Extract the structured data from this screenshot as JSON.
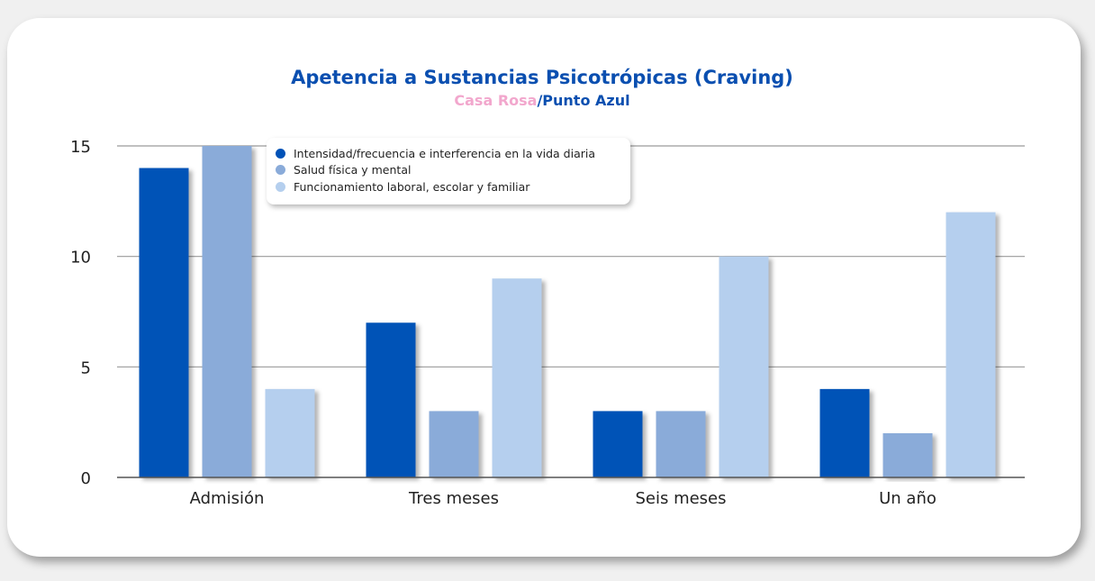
{
  "chart_data": {
    "type": "bar",
    "title": "Apetencia a Sustancias Psicotrópicas (Craving)",
    "subtitle_part1": "Casa Rosa",
    "subtitle_sep": "/",
    "subtitle_part2": "Punto Azul",
    "categories": [
      "Admisión",
      "Tres meses",
      "Seis meses",
      "Un año"
    ],
    "series": [
      {
        "name": "Intensidad/frecuencia e interferencia en la vida diaria",
        "color": "#0052b7",
        "values": [
          14,
          7,
          3,
          4
        ]
      },
      {
        "name": "Salud física y mental",
        "color": "#8aabd9",
        "values": [
          15,
          3,
          3,
          2
        ]
      },
      {
        "name": "Funcionamiento laboral, escolar y familiar",
        "color": "#b5cfee",
        "values": [
          4,
          9,
          10,
          12
        ]
      }
    ],
    "yticks": [
      0,
      5,
      10,
      15
    ],
    "ylim": [
      0,
      15
    ],
    "grid": true,
    "legend_position": "top-left"
  }
}
